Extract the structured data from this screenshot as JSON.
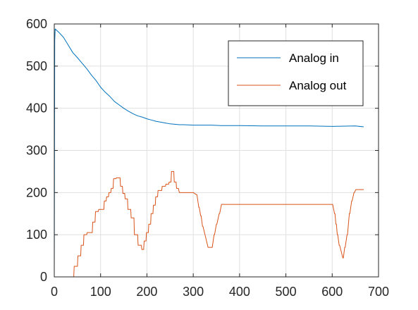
{
  "chart_data": {
    "type": "line",
    "title": "",
    "xlabel": "",
    "ylabel": "",
    "xlim": [
      0,
      700
    ],
    "ylim": [
      0,
      600
    ],
    "xticks": [
      "0",
      "100",
      "200",
      "300",
      "400",
      "500",
      "600",
      "700"
    ],
    "yticks": [
      "0",
      "100",
      "200",
      "300",
      "400",
      "500",
      "600"
    ],
    "grid": true,
    "legend_position": "top-right",
    "series": [
      {
        "name": "Analog in",
        "color": "#0072BD",
        "x": [
          0,
          1,
          2,
          5,
          10,
          20,
          30,
          40,
          50,
          60,
          70,
          80,
          90,
          100,
          110,
          120,
          130,
          140,
          150,
          160,
          170,
          180,
          190,
          200,
          210,
          220,
          230,
          240,
          250,
          260,
          270,
          280,
          300,
          320,
          340,
          360,
          400,
          450,
          500,
          550,
          600,
          650,
          668
        ],
        "y": [
          0,
          560,
          588,
          585,
          580,
          568,
          550,
          532,
          520,
          507,
          494,
          479,
          466,
          450,
          438,
          428,
          416,
          408,
          400,
          393,
          387,
          382,
          379,
          375,
          372,
          369,
          367,
          365,
          363,
          362,
          361,
          361,
          360,
          360,
          360,
          359,
          359,
          358,
          358,
          358,
          357,
          358,
          356
        ]
      },
      {
        "name": "Analog out",
        "color": "#D95319",
        "x": [
          0,
          42,
          43,
          50,
          51,
          57,
          58,
          63,
          64,
          70,
          71,
          82,
          83,
          88,
          89,
          95,
          96,
          107,
          108,
          112,
          113,
          117,
          118,
          122,
          123,
          127,
          128,
          133,
          134,
          142,
          143,
          147,
          148,
          152,
          153,
          158,
          159,
          165,
          166,
          172,
          173,
          180,
          181,
          188,
          189,
          193,
          194,
          198,
          199,
          203,
          204,
          208,
          209,
          213,
          214,
          218,
          219,
          223,
          224,
          232,
          233,
          240,
          241,
          247,
          248,
          252,
          253,
          258,
          259,
          263,
          264,
          268,
          270,
          300,
          307,
          308,
          312,
          313,
          316,
          317,
          320,
          321,
          332,
          333,
          340,
          341,
          345,
          346,
          350,
          351,
          356,
          357,
          361,
          362,
          600,
          601,
          605,
          606,
          608,
          609,
          611,
          612,
          615,
          616,
          623,
          624,
          627,
          628,
          632,
          633,
          637,
          638,
          642,
          643,
          647,
          648,
          651,
          652,
          668
        ],
        "y": [
          0,
          0,
          25,
          25,
          50,
          50,
          75,
          75,
          100,
          100,
          105,
          105,
          130,
          130,
          155,
          155,
          160,
          160,
          180,
          180,
          190,
          190,
          200,
          200,
          210,
          210,
          233,
          233,
          235,
          235,
          215,
          215,
          198,
          198,
          185,
          185,
          160,
          160,
          140,
          140,
          100,
          100,
          75,
          75,
          65,
          65,
          85,
          85,
          105,
          105,
          125,
          125,
          150,
          150,
          170,
          170,
          190,
          190,
          205,
          205,
          215,
          215,
          220,
          220,
          225,
          225,
          250,
          250,
          225,
          225,
          210,
          210,
          200,
          200,
          195,
          195,
          165,
          165,
          145,
          145,
          120,
          120,
          70,
          70,
          70,
          70,
          100,
          100,
          125,
          125,
          150,
          150,
          172,
          172,
          172,
          172,
          150,
          150,
          125,
          125,
          100,
          100,
          75,
          75,
          45,
          45,
          70,
          70,
          100,
          100,
          150,
          150,
          180,
          180,
          200,
          200,
          207,
          207,
          207
        ]
      }
    ]
  }
}
